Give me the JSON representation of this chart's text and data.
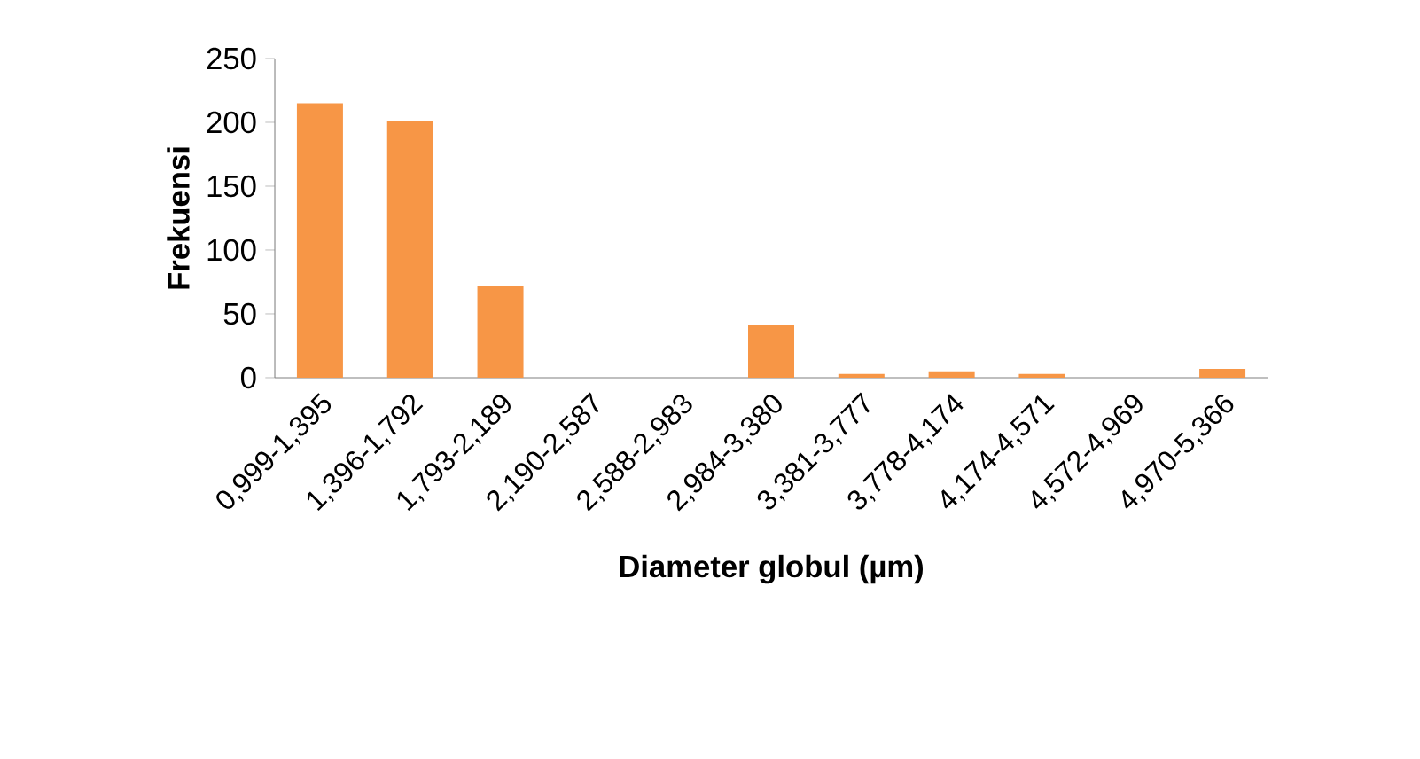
{
  "chart_data": {
    "type": "bar",
    "xlabel": "Diameter globul (µm)",
    "ylabel": "Frekuensi",
    "categories": [
      "0,999-1,395",
      "1,396-1,792",
      "1,793-2,189",
      "2,190-2,587",
      "2,588-2,983",
      "2,984-3,380",
      "3,381-3,777",
      "3,778-4,174",
      "4,174-4,571",
      "4,572-4,969",
      "4,970-5,366"
    ],
    "values": [
      215,
      201,
      72,
      0,
      0,
      41,
      3,
      5,
      3,
      0,
      7
    ],
    "color": "#f79646",
    "ylim": [
      0,
      250
    ],
    "yticks": [
      0,
      50,
      100,
      150,
      200,
      250
    ],
    "grid": false
  }
}
